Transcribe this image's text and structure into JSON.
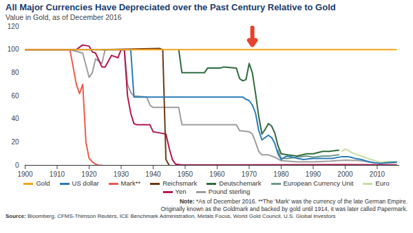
{
  "chart_data": {
    "type": "line",
    "title": "All Major Currencies Have Depreciated over the Past Century Relative to Gold",
    "subtitle": "Value in Gold, as of December 2016",
    "xlim": [
      1900,
      2017
    ],
    "xticks": [
      1900,
      1910,
      1920,
      1930,
      1940,
      1950,
      1960,
      1970,
      1980,
      1990,
      2000,
      2010
    ],
    "ylim": [
      0,
      120
    ],
    "yticks": [
      0,
      20,
      40,
      60,
      80,
      100,
      120
    ],
    "grid": false,
    "legend": "bottom",
    "series": [
      {
        "name": "Gold",
        "color": "#f7a21b",
        "x": [
          1900,
          2016
        ],
        "values": [
          100,
          100
        ]
      },
      {
        "name": "US dollar",
        "color": "#2b7bb9",
        "x": [
          1900,
          1933,
          1934,
          1968,
          1969,
          1970,
          1971,
          1972,
          1973,
          1974,
          1975,
          1976,
          1977,
          1978,
          1979,
          1980,
          1981,
          1982,
          1985,
          1987,
          1990,
          1993,
          1996,
          1999,
          2001,
          2003,
          2005,
          2007,
          2009,
          2011,
          2013,
          2016
        ],
        "values": [
          100,
          100,
          59,
          59,
          57,
          56,
          52,
          45,
          30,
          22,
          24,
          26,
          24,
          19,
          10,
          5,
          7,
          8,
          6,
          5,
          6,
          6,
          6,
          7.5,
          7.5,
          6,
          5,
          3.5,
          2.2,
          1.7,
          2.2,
          2.8
        ]
      },
      {
        "name": "Mark**",
        "color": "#f0594a",
        "x": [
          1900,
          1914,
          1915,
          1916,
          1917,
          1918,
          1919,
          1920,
          1921,
          1922,
          1923,
          1924
        ],
        "values": [
          100,
          100,
          85,
          70,
          62,
          70,
          20,
          6,
          3,
          1,
          0,
          0
        ]
      },
      {
        "name": "Reichsmark",
        "color": "#6b3a12",
        "x": [
          1924,
          1942,
          1943,
          1944,
          1945
        ],
        "values": [
          100,
          101,
          100,
          5,
          0
        ]
      },
      {
        "name": "Deutschemark",
        "color": "#2e6b3c",
        "x": [
          1948,
          1949,
          1956,
          1957,
          1961,
          1962,
          1966,
          1967,
          1968,
          1969,
          1970,
          1971,
          1972,
          1973,
          1974,
          1975,
          1976,
          1977,
          1978,
          1979,
          1980,
          1982,
          1985,
          1988,
          1990,
          1993,
          1995,
          1998
        ],
        "values": [
          100,
          80,
          80,
          84,
          84,
          85,
          84,
          75,
          73,
          74,
          88,
          80,
          62,
          42,
          27,
          31,
          36,
          34,
          28,
          17,
          10,
          9,
          8,
          10,
          10,
          12,
          12,
          13
        ]
      },
      {
        "name": "European Currency Unit",
        "color": "#6e9a8a",
        "x": [
          1979,
          1980,
          1982,
          1985,
          1988,
          1990,
          1993,
          1995,
          1998
        ],
        "values": [
          13,
          6,
          6,
          7,
          8,
          7,
          8,
          8,
          9
        ]
      },
      {
        "name": "Euro",
        "color": "#c5dfa0",
        "x": [
          1999,
          2000,
          2001,
          2002,
          2004,
          2006,
          2008,
          2010,
          2011,
          2012,
          2014,
          2016
        ],
        "values": [
          12,
          14,
          13,
          11,
          9,
          7,
          5,
          3.5,
          2.7,
          2.8,
          3.2,
          3
        ]
      },
      {
        "name": "Yen",
        "color": "#b5174b",
        "x": [
          1900,
          1916,
          1918,
          1920,
          1921,
          1922,
          1924,
          1925,
          1927,
          1929,
          1930,
          1931,
          1932,
          1933,
          1934,
          1935,
          1939,
          1940,
          1942,
          1944,
          1945,
          1946,
          1947,
          1949,
          1960,
          1980,
          2000,
          2016
        ],
        "values": [
          100,
          100,
          104,
          103,
          98,
          97,
          85,
          85,
          95,
          93,
          100,
          100,
          60,
          45,
          36,
          35,
          35,
          29,
          28,
          27,
          15,
          5,
          1,
          0.3,
          0.3,
          0.5,
          0.6,
          0.3
        ]
      },
      {
        "name": "Pound sterling",
        "color": "#9d9d9d",
        "x": [
          1900,
          1914,
          1918,
          1920,
          1921,
          1922,
          1924,
          1925,
          1931,
          1932,
          1933,
          1934,
          1938,
          1939,
          1940,
          1945,
          1948,
          1949,
          1966,
          1967,
          1970,
          1971,
          1972,
          1973,
          1974,
          1976,
          1978,
          1980,
          1985,
          1990,
          1995,
          2000,
          2005,
          2008,
          2011,
          2016
        ],
        "values": [
          100,
          100,
          97,
          76,
          80,
          92,
          88,
          100,
          100,
          70,
          63,
          60,
          59,
          52,
          50,
          50,
          50,
          35,
          35,
          30,
          29,
          27,
          20,
          12,
          9,
          9,
          7,
          4,
          3,
          3,
          3.5,
          4.5,
          4,
          2.5,
          1.8,
          2.2
        ]
      }
    ],
    "annotations": [
      {
        "type": "arrow",
        "x": 1971,
        "y1": 119,
        "y2": 104,
        "color": "#e8412c"
      }
    ],
    "note": [
      "Note: *As of December 2016. **The 'Mark' was the currency of the late German Empire.",
      "Originally known as the Goldmark and backed by gold until 1914, it was later called Papermark."
    ],
    "source": "Source: Bloomberg, CFMS-Thimson Reuters, ICE Benchmark Administration, Metals Focus, World Gold Council, U.S. Global Investors"
  }
}
